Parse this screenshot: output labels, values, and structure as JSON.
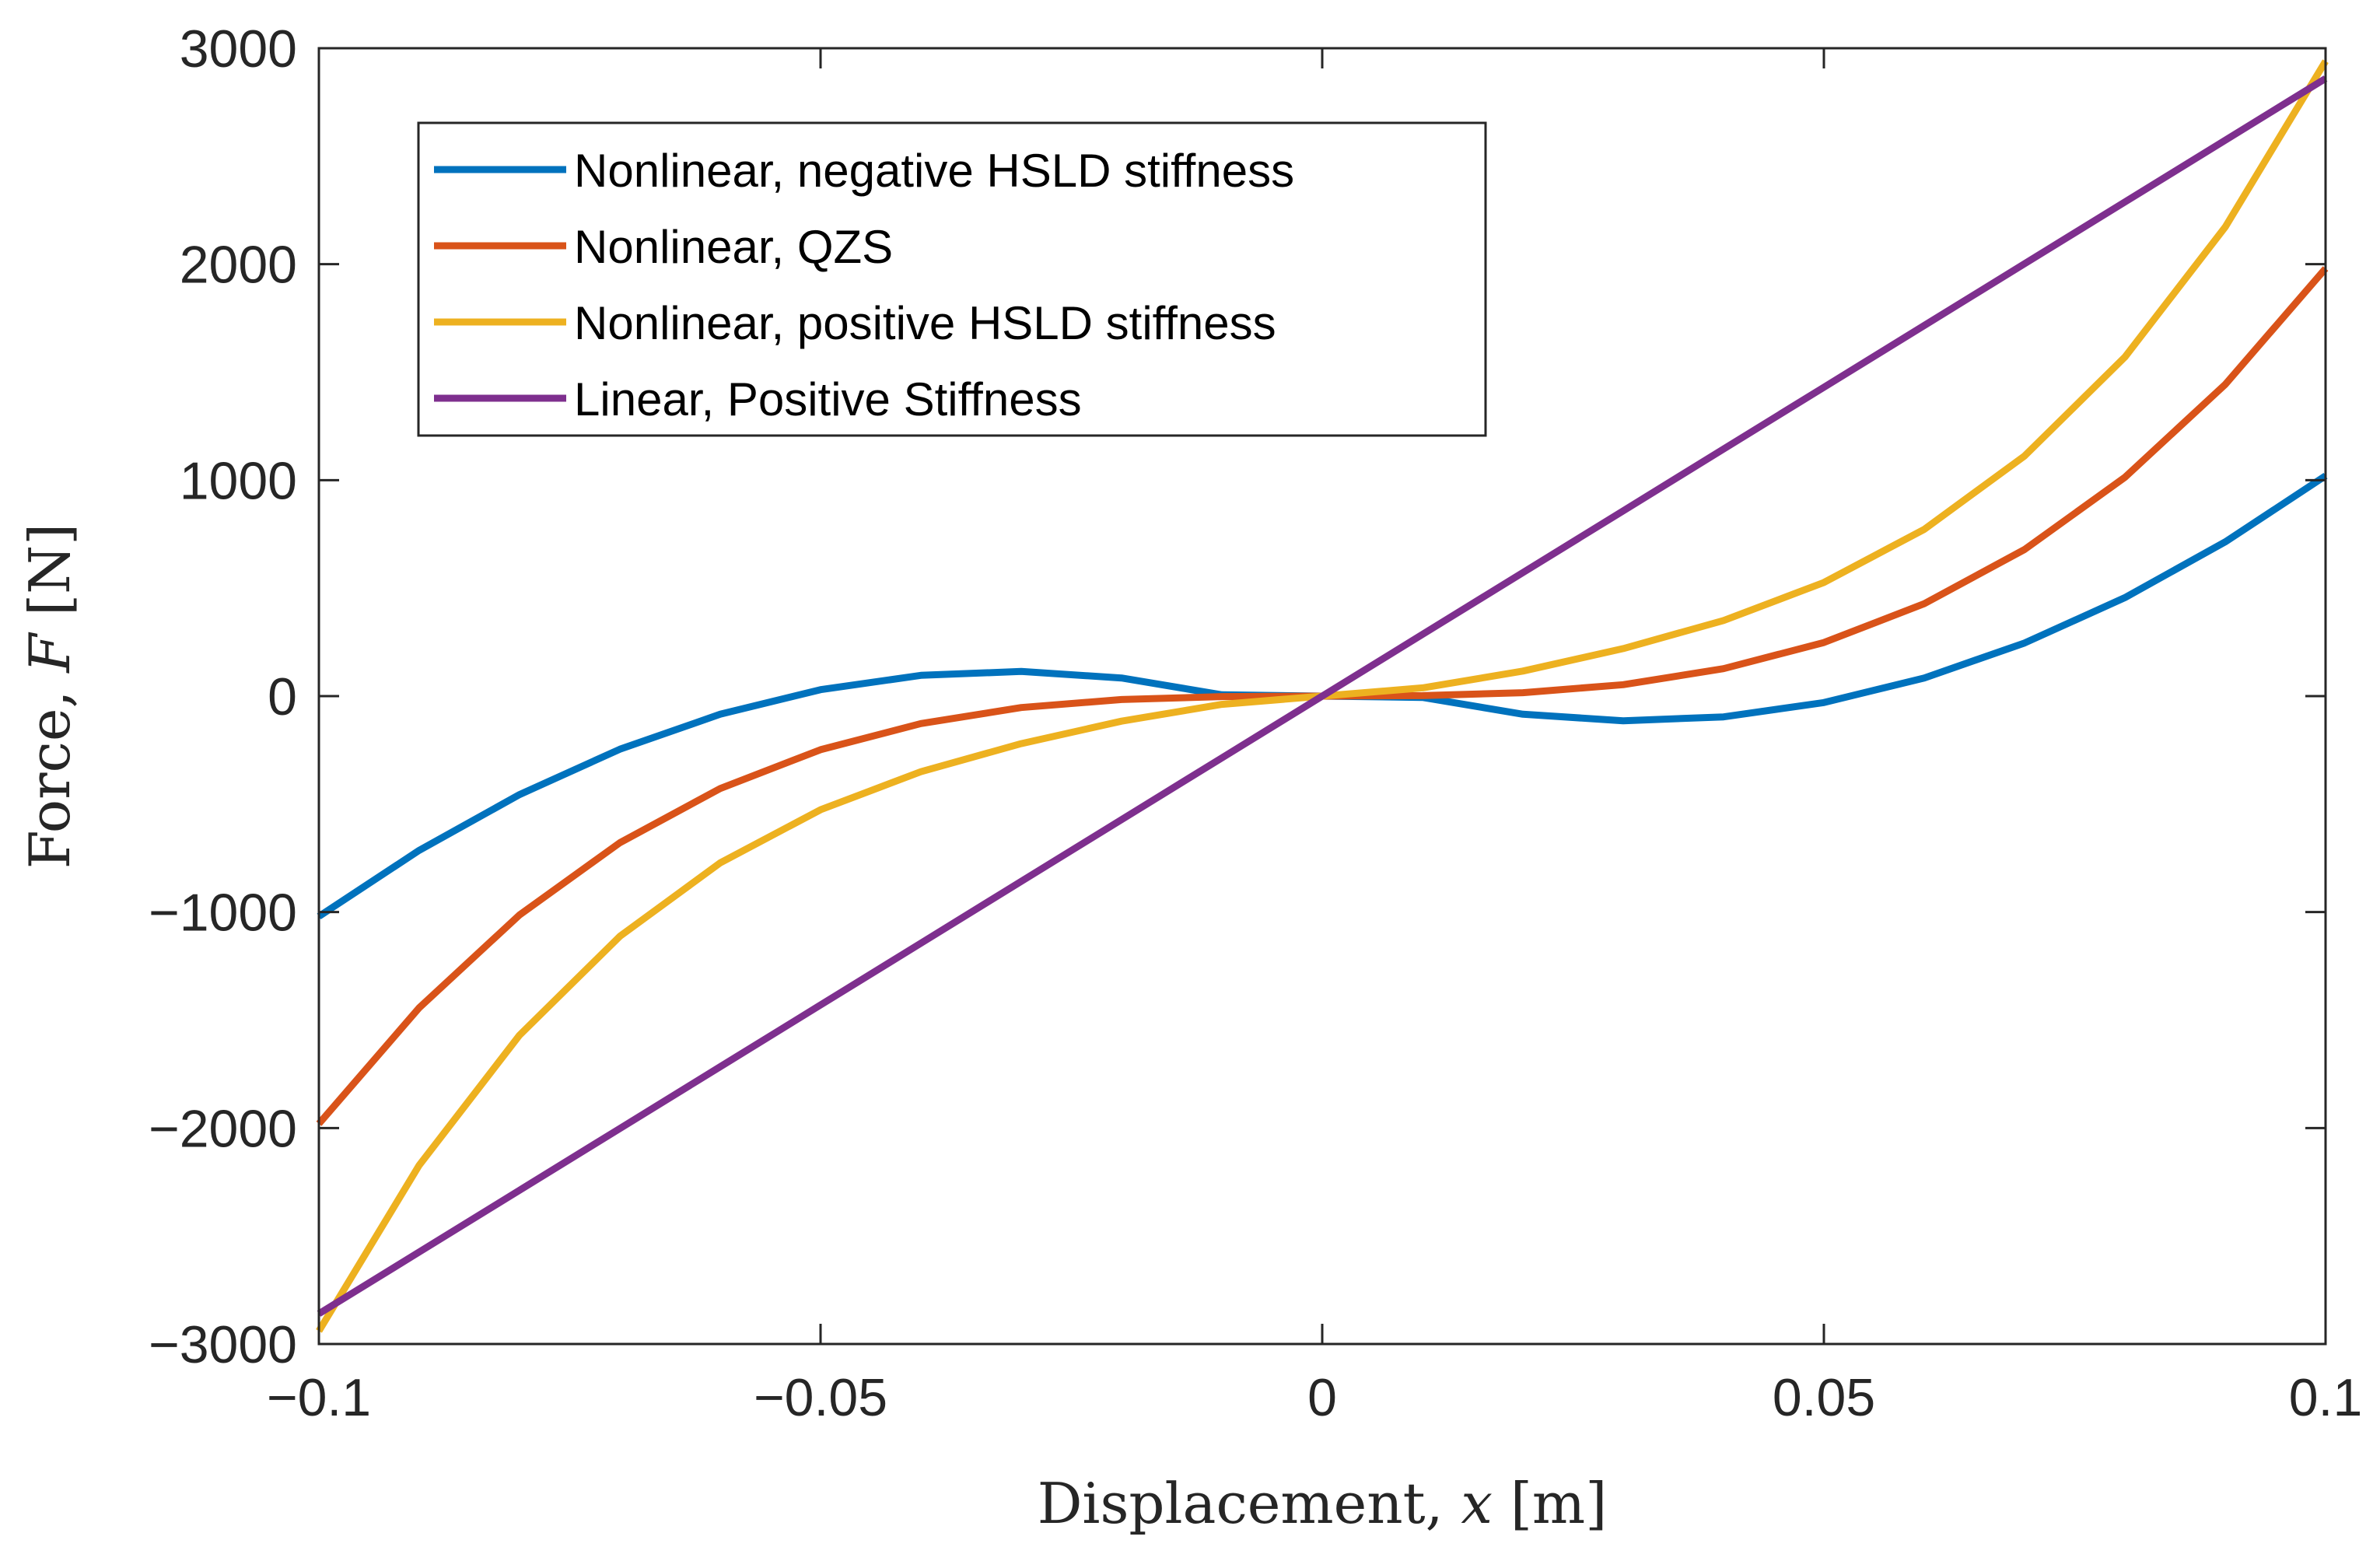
{
  "chart_data": {
    "type": "line",
    "xlabel": {
      "prefix": "Displacement, ",
      "var": "x",
      "unit": " [m]"
    },
    "ylabel": {
      "prefix": "Force, ",
      "var": "F",
      "unit": " [N]"
    },
    "xlim": [
      -0.1,
      0.1
    ],
    "ylim": [
      -3000,
      3000
    ],
    "xticks": [
      -0.1,
      -0.05,
      0,
      0.05,
      0.1
    ],
    "xtick_labels": [
      "−0.1",
      "−0.05",
      "0",
      "0.05",
      "0.1"
    ],
    "yticks": [
      -3000,
      -2000,
      -1000,
      0,
      1000,
      2000,
      3000
    ],
    "ytick_labels": [
      "−3000",
      "−2000",
      "−1000",
      "0",
      "1000",
      "2000",
      "3000"
    ],
    "grid": false,
    "legend_position": "top-left",
    "x": [
      -0.1,
      -0.09,
      -0.08,
      -0.07,
      -0.06,
      -0.05,
      -0.04,
      -0.03,
      -0.02,
      -0.01,
      0,
      0.01,
      0.02,
      0.03,
      0.04,
      0.05,
      0.06,
      0.07,
      0.08,
      0.09,
      0.1
    ],
    "series": [
      {
        "name": "Nonlinear, negative HSLD stiffness",
        "color": "#0072BD",
        "values": [
          -1020,
          -714,
          -456,
          -246,
          -84,
          30,
          96,
          114,
          84,
          6,
          0,
          -6,
          -84,
          -114,
          -96,
          -30,
          84,
          246,
          456,
          714,
          1020
        ]
      },
      {
        "name": "Nonlinear, QZS",
        "color": "#D95319",
        "values": [
          -1980,
          -1443,
          -1013,
          -679,
          -428,
          -248,
          -127,
          -53,
          -16,
          -2,
          0,
          2,
          16,
          53,
          127,
          248,
          428,
          679,
          1013,
          1443,
          1980
        ]
      },
      {
        "name": "Nonlinear, positive HSLD stiffness",
        "color": "#EDB120",
        "values": [
          -2940,
          -2172,
          -1570,
          -1112,
          -772,
          -526,
          -350,
          -220,
          -116,
          -38,
          0,
          38,
          116,
          220,
          350,
          526,
          772,
          1112,
          1570,
          2172,
          2940
        ]
      },
      {
        "name": "Linear, Positive Stiffness",
        "color": "#7E2F8E",
        "values": [
          -2860,
          -2574,
          -2288,
          -2002,
          -1716,
          -1430,
          -1144,
          -858,
          -572,
          -286,
          0,
          286,
          572,
          858,
          1144,
          1430,
          1716,
          2002,
          2288,
          2574,
          2860
        ]
      }
    ]
  }
}
